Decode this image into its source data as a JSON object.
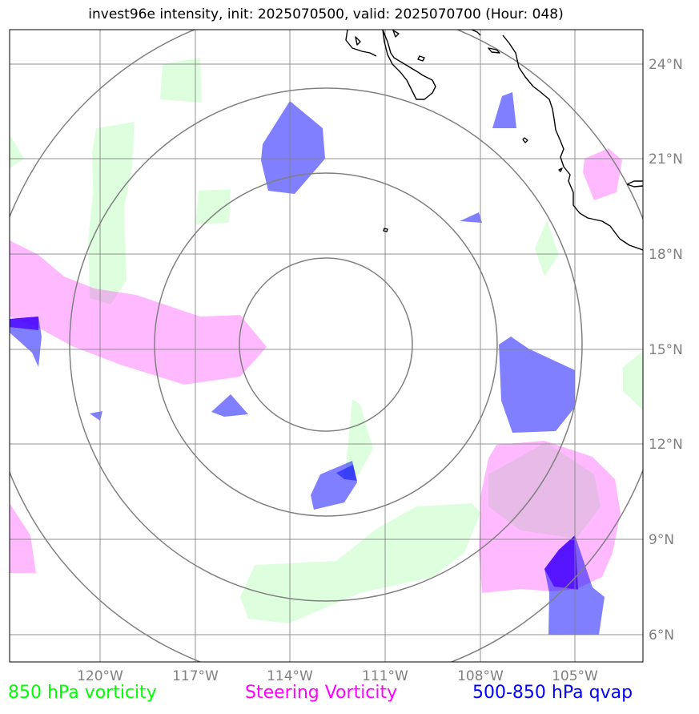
{
  "title": "invest96e intensity, init: 2025070500, valid: 2025070700 (Hour: 048)",
  "lon_labels": [
    "120°W",
    "117°W",
    "114°W",
    "111°W",
    "108°W",
    "105°W"
  ],
  "lat_labels": [
    "24°N",
    "21°N",
    "18°N",
    "15°N",
    "12°N",
    "9°N",
    "6°N"
  ],
  "legend": {
    "vorticity_850": "850 hPa vorticity",
    "steering_vorticity": "Steering Vorticity",
    "qvap_500_850": "500-850 hPa qvap"
  },
  "colors": {
    "vorticity_850": "#00ff00",
    "steering_vorticity": "#ff00ff",
    "qvap_500_850": "#0000ff",
    "grid": "#808080",
    "coastline": "#000000"
  },
  "map": {
    "lon_range": [
      -123,
      -103
    ],
    "lat_range": [
      5,
      25
    ],
    "center_lon": -113,
    "center_lat": 15,
    "range_rings": 4,
    "gridlines": true
  }
}
